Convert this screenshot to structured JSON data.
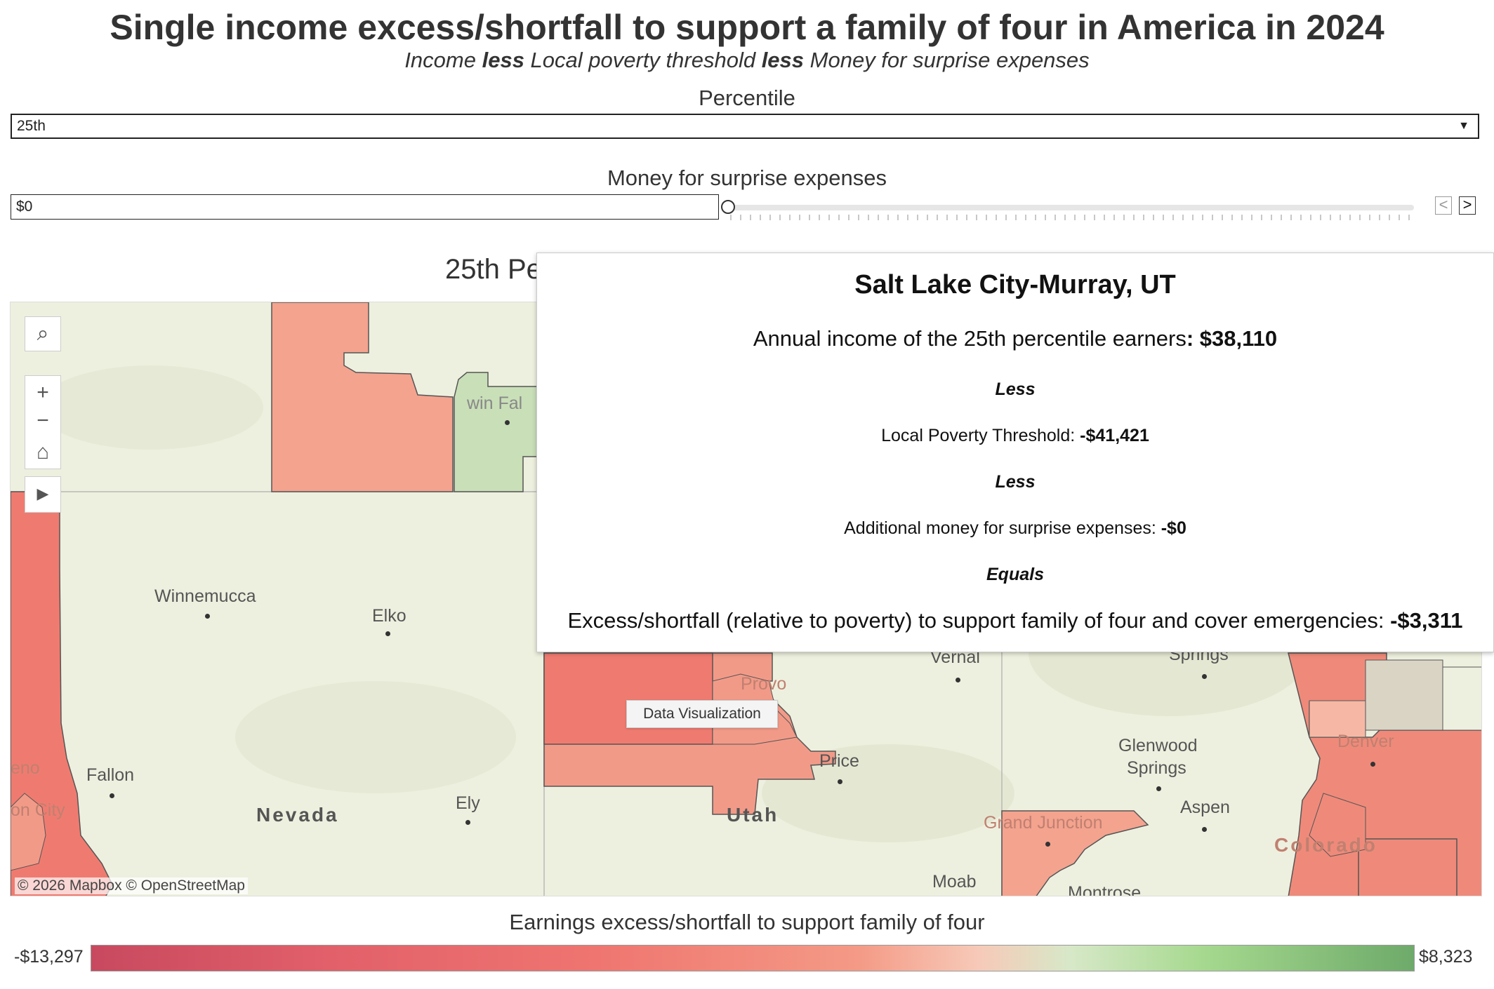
{
  "header": {
    "title": "Single income excess/shortfall to support a family of four in America in 2024",
    "subtitle_part1": "Income ",
    "subtitle_bold1": "less",
    "subtitle_part2": " Local poverty threshold ",
    "subtitle_bold2": "less",
    "subtitle_part3": " Money for surprise expenses"
  },
  "controls": {
    "percentile_label": "Percentile",
    "percentile_value": "25th",
    "money_label": "Money for surprise expenses",
    "money_value": "$0",
    "slider_position": 0,
    "prev_glyph": "<",
    "next_glyph": ">"
  },
  "map": {
    "title": "25th Pe",
    "attribution": "© 2026 Mapbox  © OpenStreetMap",
    "tools": {
      "search": "⌕",
      "zoom_in": "+",
      "zoom_out": "−",
      "home": "⌂",
      "play": "▶"
    },
    "labels": {
      "winnemucca": "Winnemucca",
      "elko": "Elko",
      "fallon": "Fallon",
      "nevada": "Nevada",
      "ely": "Ely",
      "reno": "eno",
      "carson": "on City",
      "twin_falls": "win Fal",
      "provo": "Provo",
      "price": "Price",
      "utah": "Utah",
      "vernal": "Vernal",
      "springs": "Springs",
      "glenwood": "Glenwood",
      "glenwood2": "Springs",
      "aspen": "Aspen",
      "grand_junction": "Grand Junction",
      "moab": "Moab",
      "montrose": "Montrose",
      "denver": "Denver",
      "colorado": "Colorado"
    },
    "hover_tooltip": "Data Visualization"
  },
  "tooltip": {
    "title": "Salt Lake City-Murray, UT",
    "income_text": "Annual income of the 25th percentile earners",
    "income_value": ": $38,110",
    "less1": "Less",
    "poverty_text": "Local Poverty Threshold: ",
    "poverty_value": "-$41,421",
    "less2": "Less",
    "surprise_text": "Additional money for surprise expenses: ",
    "surprise_value": "-$0",
    "equals": "Equals",
    "result_text": "Excess/shortfall (relative to poverty) to support family of four and cover emergencies: ",
    "result_value": "-$3,311"
  },
  "legend": {
    "title": "Earnings excess/shortfall to support family of four",
    "min": "-$13,297",
    "max": "$8,323"
  },
  "colors": {
    "shortfall": "#f29a88",
    "deep_shortfall": "#ef7b70",
    "excess": "#c9dfb8",
    "neutral": "#d9d4c4",
    "map_base": "#eef0df"
  }
}
